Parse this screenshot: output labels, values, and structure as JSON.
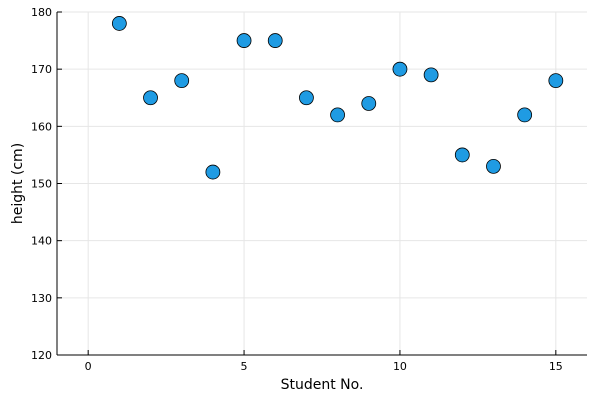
{
  "chart_data": {
    "type": "scatter",
    "title": "",
    "xlabel": "Student No.",
    "ylabel": "height (cm)",
    "xlim": [
      -1,
      16
    ],
    "ylim": [
      120,
      180
    ],
    "xticks": [
      0,
      5,
      10,
      15
    ],
    "yticks": [
      120,
      130,
      140,
      150,
      160,
      170,
      180
    ],
    "grid": true,
    "legend": "none",
    "marker_color": "#1f9be3",
    "marker_edge_color": "#000000",
    "series": [
      {
        "x": [
          1,
          2,
          3,
          4,
          5,
          6,
          7,
          8,
          9,
          10,
          11,
          12,
          13,
          14,
          15
        ],
        "y": [
          178,
          165,
          168,
          152,
          175,
          175,
          165,
          162,
          164,
          170,
          169,
          155,
          153,
          162,
          168
        ]
      }
    ]
  }
}
